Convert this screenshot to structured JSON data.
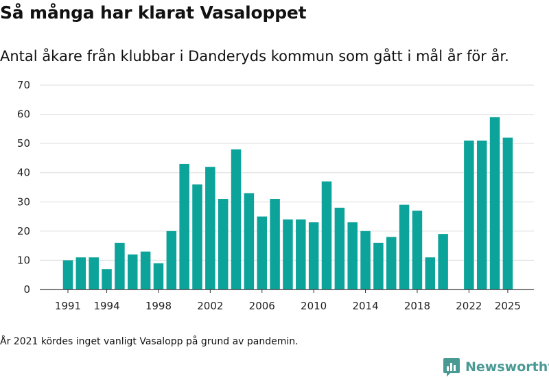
{
  "title": "Så många har klarat Vasaloppet",
  "subtitle": "Antal åkare från klubbar i Danderyds kommun som gått i mål år för år.",
  "footnote": "År 2021 kördes inget vanligt Vasalopp på grund av pandemin.",
  "brand": {
    "name": "Newsworthy",
    "icon": "newsworthy-logo-icon"
  },
  "colors": {
    "bar": "#0ca39a",
    "grid": "#dedede",
    "axis": "#333333",
    "text": "#222222",
    "brand": "#4a9a94"
  },
  "chart_data": {
    "type": "bar",
    "x": [
      1991,
      1992,
      1993,
      1994,
      1995,
      1996,
      1997,
      1998,
      1999,
      2000,
      2001,
      2002,
      2003,
      2004,
      2005,
      2006,
      2007,
      2008,
      2009,
      2010,
      2011,
      2012,
      2013,
      2014,
      2015,
      2016,
      2017,
      2018,
      2019,
      2020,
      2021,
      2022,
      2023,
      2024,
      2025
    ],
    "values": [
      10,
      11,
      11,
      7,
      16,
      12,
      13,
      9,
      20,
      43,
      36,
      42,
      31,
      48,
      33,
      25,
      31,
      24,
      24,
      23,
      37,
      28,
      23,
      20,
      16,
      18,
      29,
      27,
      11,
      19,
      null,
      51,
      51,
      59,
      52
    ],
    "xticks": [
      1991,
      1994,
      1998,
      2002,
      2006,
      2010,
      2014,
      2018,
      2022,
      2025
    ],
    "yticks": [
      0,
      10,
      20,
      30,
      40,
      50,
      60,
      70
    ],
    "ylim": [
      0,
      70
    ],
    "xlabel": "",
    "ylabel": "",
    "grid": true,
    "legend": "none"
  }
}
